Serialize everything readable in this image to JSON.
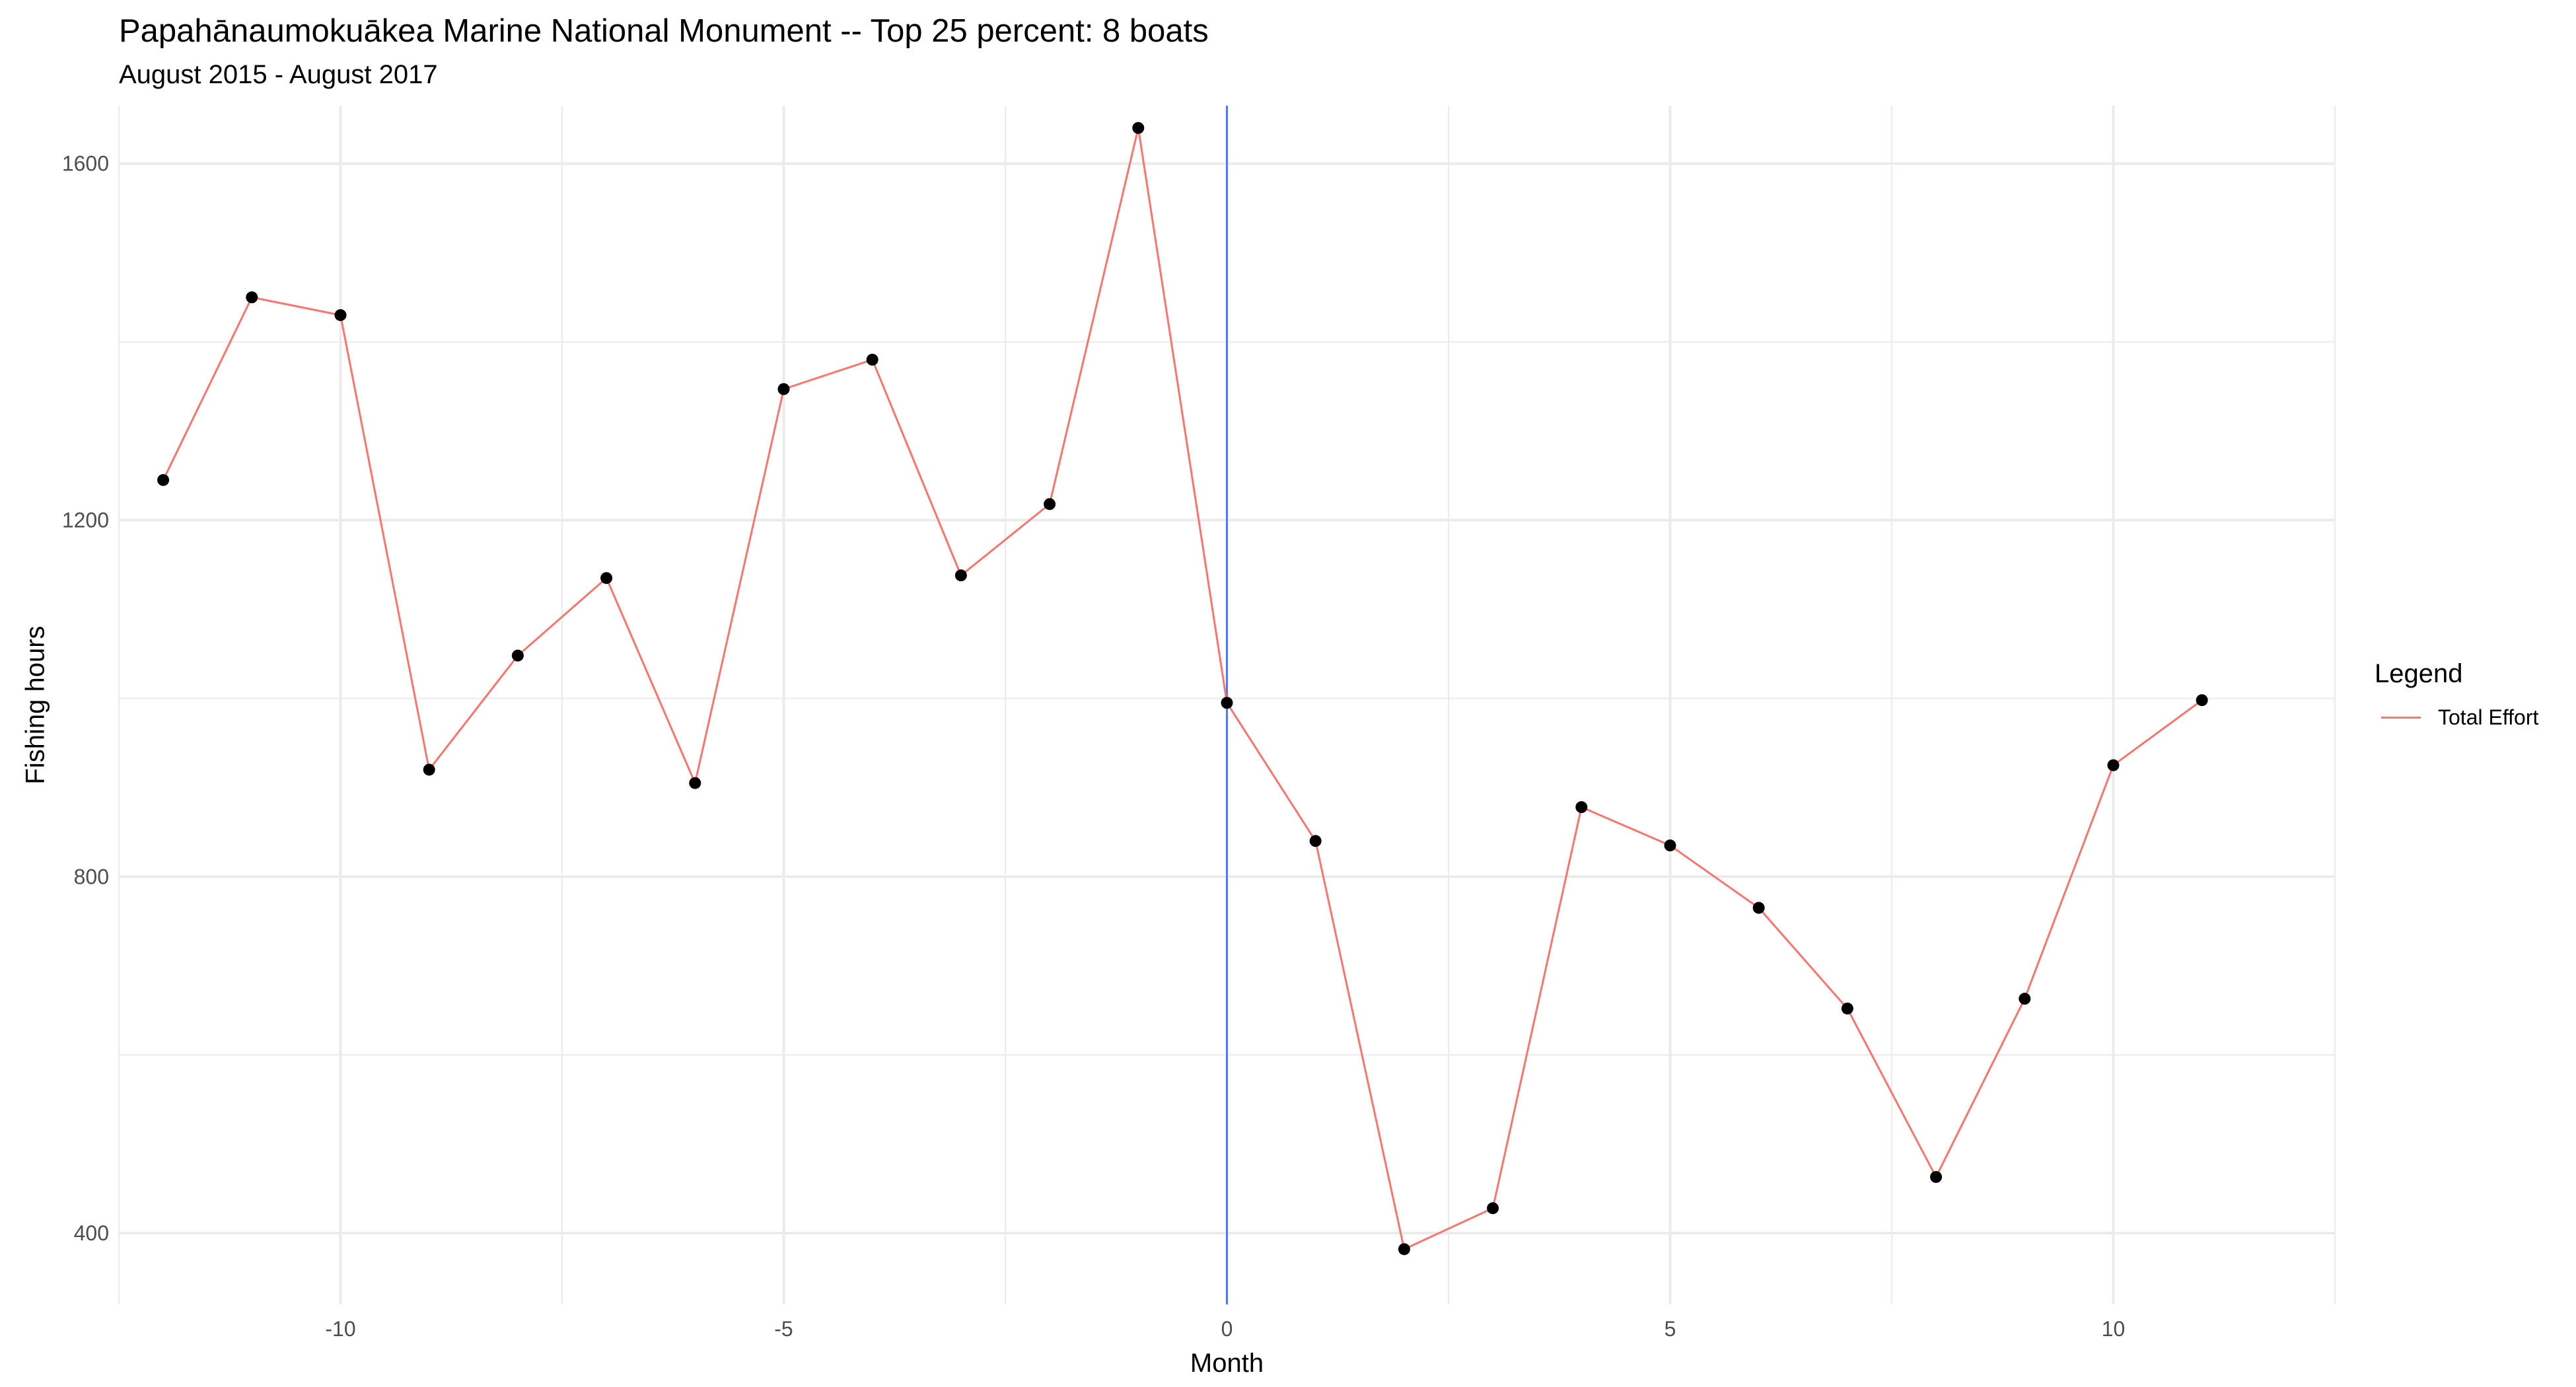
{
  "title": "Papahānaumokuākea Marine National Monument -- Top 25 percent: 8 boats",
  "subtitle": "August 2015 - August 2017",
  "legend": {
    "title": "Legend",
    "label": "Total Effort"
  },
  "colors": {
    "line": "#F8766D",
    "point": "#000000",
    "vline": "#3366FF",
    "grid": "#EBEBEB"
  },
  "chart_data": {
    "type": "line",
    "title": "Papahānaumokuākea Marine National Monument -- Top 25 percent: 8 boats",
    "subtitle": "August 2015 - August 2017",
    "xlabel": "Month",
    "ylabel": "Fishing hours",
    "xlim": [
      -12.5,
      12.5
    ],
    "ylim": [
      320,
      1665
    ],
    "xticks": [
      -10,
      -5,
      0,
      5,
      10
    ],
    "yticks": [
      400,
      800,
      1200,
      1600
    ],
    "grid": true,
    "legend_position": "right",
    "vline_x": 0,
    "series": [
      {
        "name": "Total Effort",
        "x": [
          -12,
          -11,
          -10,
          -9,
          -8,
          -7,
          -6,
          -5,
          -4,
          -3,
          -2,
          -1,
          0,
          1,
          2,
          3,
          4,
          5,
          6,
          7,
          8,
          9,
          10,
          11
        ],
        "y": [
          1245,
          1450,
          1430,
          920,
          1048,
          1135,
          905,
          1347,
          1380,
          1138,
          1218,
          1640,
          995,
          840,
          382,
          428,
          878,
          835,
          765,
          652,
          463,
          663,
          925,
          998
        ]
      }
    ]
  }
}
